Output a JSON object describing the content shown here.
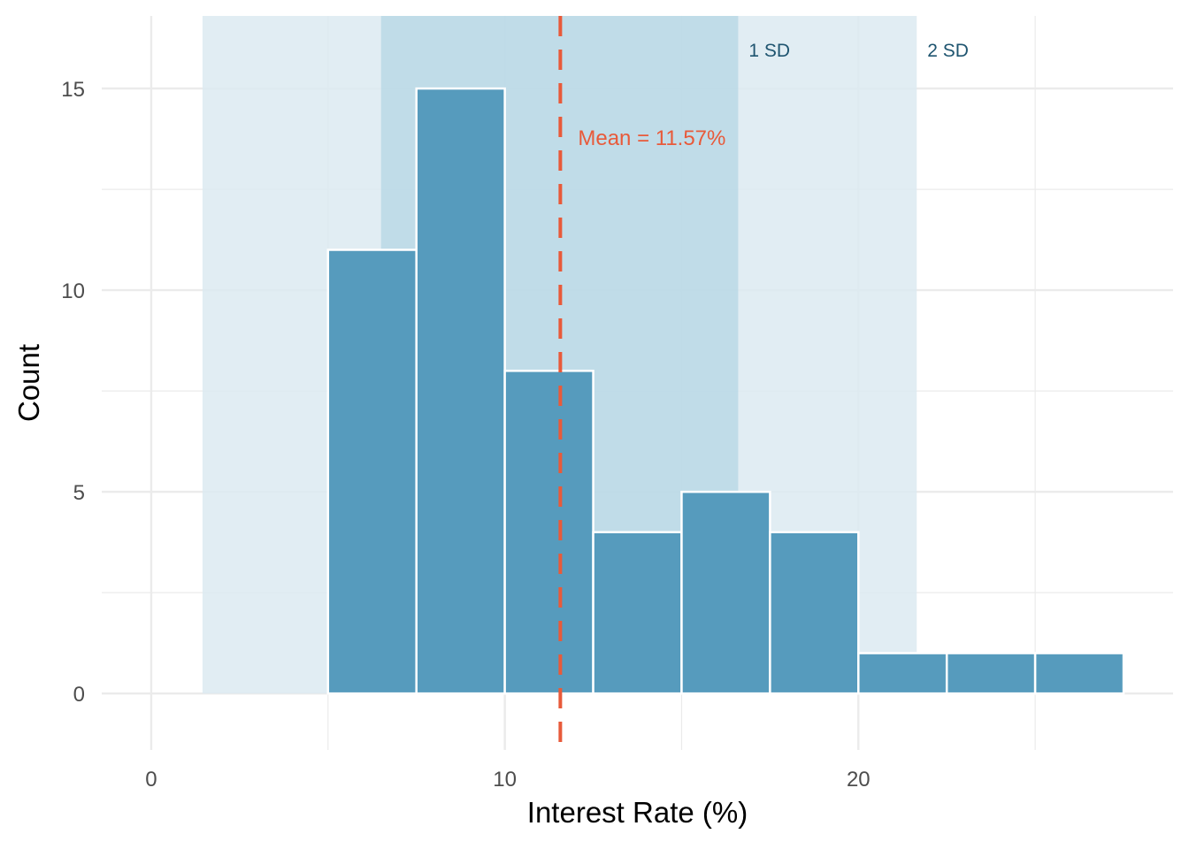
{
  "chart_data": {
    "type": "bar",
    "subtype": "histogram",
    "xlabel": "Interest Rate (%)",
    "ylabel": "Count",
    "xlim": [
      -1.4,
      28.9
    ],
    "ylim": [
      -1.4,
      16.8
    ],
    "x_ticks": [
      0,
      10,
      20
    ],
    "x_tick_labels": [
      "0",
      "10",
      "20"
    ],
    "y_ticks": [
      0,
      5,
      10,
      15
    ],
    "y_tick_labels": [
      "0",
      "5",
      "10",
      "15"
    ],
    "grid": true,
    "bins": [
      {
        "start": 2.5,
        "end": 5.0,
        "count": 0
      },
      {
        "start": 5.0,
        "end": 7.5,
        "count": 11
      },
      {
        "start": 7.5,
        "end": 10.0,
        "count": 15
      },
      {
        "start": 10.0,
        "end": 12.5,
        "count": 8
      },
      {
        "start": 12.5,
        "end": 15.0,
        "count": 4
      },
      {
        "start": 15.0,
        "end": 17.5,
        "count": 5
      },
      {
        "start": 17.5,
        "end": 20.0,
        "count": 4
      },
      {
        "start": 20.0,
        "end": 22.5,
        "count": 1
      },
      {
        "start": 22.5,
        "end": 25.0,
        "count": 1
      },
      {
        "start": 25.0,
        "end": 27.5,
        "count": 1
      }
    ],
    "mean": 11.57,
    "mean_label": "Mean = 11.57%",
    "sd_bands": [
      {
        "label": "2 SD",
        "from": 1.45,
        "to": 21.65
      },
      {
        "label": "1 SD",
        "from": 6.5,
        "to": 16.6
      }
    ],
    "colors": {
      "bar_fill": "#569bbd",
      "bar_outline": "#ffffff",
      "band_2sd": "#dceaf1",
      "band_1sd": "#b4d5e4",
      "mean_line": "#e85a3a",
      "band_label": "#1f5570",
      "grid": "#ebebeb"
    }
  }
}
